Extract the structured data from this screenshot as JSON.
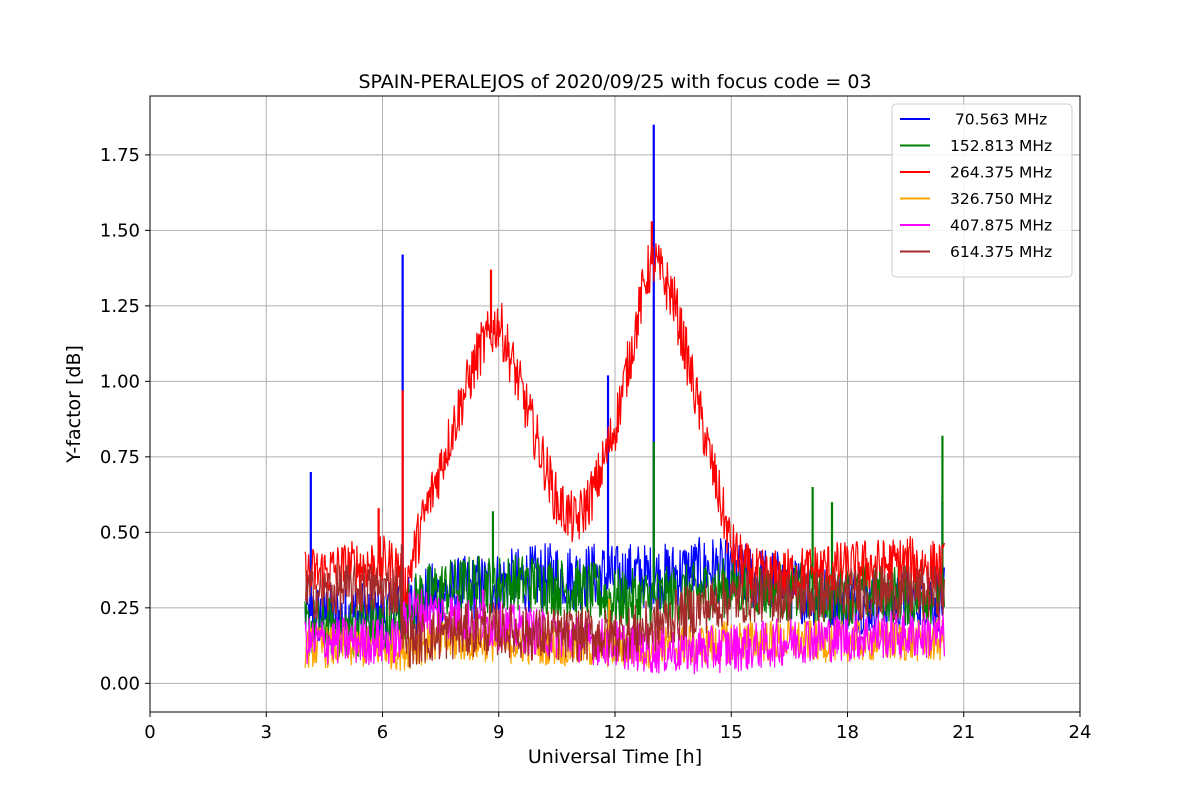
{
  "chart_data": {
    "type": "line",
    "title": "SPAIN-PERALEJOS of 2020/09/25 with focus code = 03",
    "xlabel": "Universal Time [h]",
    "ylabel": "Y-factor [dB]",
    "xlim": [
      0,
      24
    ],
    "ylim": [
      -0.095,
      1.945
    ],
    "xticks": [
      0,
      3,
      6,
      9,
      12,
      15,
      18,
      21,
      24
    ],
    "xtick_labels": [
      "0",
      "3",
      "6",
      "9",
      "12",
      "15",
      "18",
      "21",
      "24"
    ],
    "yticks": [
      0.0,
      0.25,
      0.5,
      0.75,
      1.0,
      1.25,
      1.5,
      1.75
    ],
    "ytick_labels": [
      "0.00",
      "0.25",
      "0.50",
      "0.75",
      "1.00",
      "1.25",
      "1.50",
      "1.75"
    ],
    "grid": true,
    "legend_position": "top-right",
    "series": [
      {
        "name": " 70.563 MHz",
        "color": "#0000ff",
        "x": [
          4.0,
          4.5,
          5.0,
          5.5,
          6.0,
          6.5,
          7.0,
          7.5,
          8.0,
          8.5,
          9.0,
          9.5,
          10.0,
          10.5,
          11.0,
          11.5,
          12.0,
          12.5,
          13.0,
          13.5,
          14.0,
          14.5,
          15.0,
          15.5,
          16.0,
          16.5,
          17.0,
          17.5,
          18.0,
          18.5,
          19.0,
          19.5,
          20.0,
          20.5
        ],
        "y": [
          0.22,
          0.23,
          0.22,
          0.23,
          0.22,
          0.23,
          0.28,
          0.3,
          0.31,
          0.32,
          0.33,
          0.34,
          0.35,
          0.36,
          0.35,
          0.36,
          0.35,
          0.36,
          0.35,
          0.36,
          0.37,
          0.38,
          0.36,
          0.35,
          0.34,
          0.32,
          0.3,
          0.29,
          0.28,
          0.27,
          0.27,
          0.27,
          0.28,
          0.28
        ],
        "spikes": [
          [
            4.15,
            0.7
          ],
          [
            6.52,
            1.42
          ],
          [
            11.82,
            1.02
          ],
          [
            13.0,
            1.85
          ],
          [
            20.45,
            0.6
          ]
        ]
      },
      {
        "name": "152.813 MHz",
        "color": "#008000",
        "x": [
          4.0,
          4.5,
          5.0,
          5.5,
          6.0,
          6.5,
          7.0,
          7.5,
          8.0,
          8.5,
          9.0,
          9.5,
          10.0,
          10.5,
          11.0,
          11.5,
          12.0,
          12.5,
          13.0,
          13.5,
          14.0,
          14.5,
          15.0,
          15.5,
          16.0,
          16.5,
          17.0,
          17.5,
          18.0,
          18.5,
          19.0,
          19.5,
          20.0,
          20.5
        ],
        "y": [
          0.18,
          0.19,
          0.18,
          0.19,
          0.19,
          0.22,
          0.29,
          0.31,
          0.32,
          0.33,
          0.33,
          0.33,
          0.33,
          0.32,
          0.31,
          0.3,
          0.28,
          0.28,
          0.28,
          0.29,
          0.3,
          0.31,
          0.32,
          0.32,
          0.31,
          0.3,
          0.3,
          0.29,
          0.29,
          0.3,
          0.3,
          0.29,
          0.29,
          0.3
        ],
        "spikes": [
          [
            8.85,
            0.57
          ],
          [
            13.0,
            0.8
          ],
          [
            17.1,
            0.65
          ],
          [
            17.6,
            0.6
          ],
          [
            20.45,
            0.82
          ]
        ]
      },
      {
        "name": "264.375 MHz",
        "color": "#ff0000",
        "x": [
          4.0,
          4.5,
          5.0,
          5.5,
          6.0,
          6.45,
          6.55,
          7.0,
          7.5,
          8.0,
          8.5,
          9.0,
          9.5,
          10.0,
          10.5,
          11.0,
          11.5,
          12.0,
          12.5,
          12.8,
          13.0,
          13.5,
          14.0,
          14.5,
          15.0,
          15.5,
          16.0,
          16.5,
          17.0,
          17.5,
          18.0,
          18.5,
          19.0,
          19.5,
          20.0,
          20.5
        ],
        "y": [
          0.36,
          0.37,
          0.38,
          0.39,
          0.4,
          0.38,
          0.3,
          0.52,
          0.72,
          0.92,
          1.1,
          1.2,
          1.0,
          0.8,
          0.6,
          0.53,
          0.65,
          0.85,
          1.15,
          1.35,
          1.4,
          1.28,
          1.0,
          0.72,
          0.45,
          0.36,
          0.35,
          0.36,
          0.37,
          0.38,
          0.38,
          0.39,
          0.39,
          0.4,
          0.39,
          0.38
        ],
        "spikes": [
          [
            6.52,
            0.97
          ],
          [
            5.9,
            0.58
          ],
          [
            12.95,
            1.53
          ],
          [
            8.8,
            1.37
          ]
        ]
      },
      {
        "name": "326.750 MHz",
        "color": "#ffa500",
        "x": [
          4.0,
          4.5,
          5.0,
          5.5,
          6.0,
          6.5,
          7.0,
          7.5,
          8.0,
          8.5,
          9.0,
          9.5,
          10.0,
          10.5,
          11.0,
          11.5,
          12.0,
          12.5,
          13.0,
          13.5,
          14.0,
          14.5,
          15.0,
          15.5,
          16.0,
          16.5,
          17.0,
          17.5,
          18.0,
          18.5,
          19.0,
          19.5,
          20.0,
          20.5
        ],
        "y": [
          0.12,
          0.12,
          0.12,
          0.12,
          0.12,
          0.11,
          0.13,
          0.14,
          0.14,
          0.14,
          0.14,
          0.13,
          0.13,
          0.13,
          0.12,
          0.12,
          0.12,
          0.12,
          0.12,
          0.12,
          0.13,
          0.13,
          0.14,
          0.14,
          0.14,
          0.14,
          0.14,
          0.14,
          0.14,
          0.14,
          0.14,
          0.14,
          0.14,
          0.14
        ],
        "spikes": [
          [
            11.85,
            0.28
          ]
        ]
      },
      {
        "name": "407.875 MHz",
        "color": "#ff00ff",
        "x": [
          4.0,
          4.5,
          5.0,
          5.5,
          6.0,
          6.45,
          6.55,
          7.0,
          7.5,
          8.0,
          8.5,
          9.0,
          9.5,
          10.0,
          10.5,
          11.0,
          11.5,
          12.0,
          12.5,
          13.0,
          13.5,
          14.0,
          14.5,
          15.0,
          15.5,
          16.0,
          16.5,
          17.0,
          17.5,
          18.0,
          18.5,
          19.0,
          19.5,
          20.0,
          20.5
        ],
        "y": [
          0.14,
          0.14,
          0.14,
          0.14,
          0.14,
          0.14,
          0.24,
          0.24,
          0.23,
          0.22,
          0.2,
          0.19,
          0.18,
          0.17,
          0.16,
          0.15,
          0.14,
          0.13,
          0.12,
          0.11,
          0.11,
          0.11,
          0.11,
          0.12,
          0.12,
          0.13,
          0.14,
          0.15,
          0.15,
          0.15,
          0.16,
          0.16,
          0.16,
          0.16,
          0.16
        ],
        "spikes": [
          [
            8.6,
            0.31
          ],
          [
            6.7,
            0.3
          ]
        ]
      },
      {
        "name": "614.375 MHz",
        "color": "#a52a2a",
        "x": [
          4.0,
          4.5,
          5.0,
          5.5,
          6.0,
          6.45,
          6.55,
          7.0,
          7.5,
          8.0,
          8.5,
          9.0,
          9.5,
          10.0,
          10.5,
          11.0,
          11.5,
          12.0,
          12.5,
          13.0,
          13.5,
          14.0,
          14.5,
          15.0,
          15.5,
          16.0,
          16.5,
          17.0,
          17.5,
          18.0,
          18.5,
          19.0,
          19.5,
          20.0,
          20.5
        ],
        "y": [
          0.3,
          0.3,
          0.31,
          0.31,
          0.31,
          0.31,
          0.14,
          0.15,
          0.16,
          0.17,
          0.18,
          0.18,
          0.17,
          0.16,
          0.16,
          0.16,
          0.16,
          0.16,
          0.17,
          0.19,
          0.22,
          0.24,
          0.26,
          0.28,
          0.29,
          0.29,
          0.29,
          0.29,
          0.29,
          0.29,
          0.3,
          0.3,
          0.3,
          0.3,
          0.3
        ],
        "spikes": [
          [
            6.5,
            0.46
          ]
        ]
      }
    ]
  }
}
